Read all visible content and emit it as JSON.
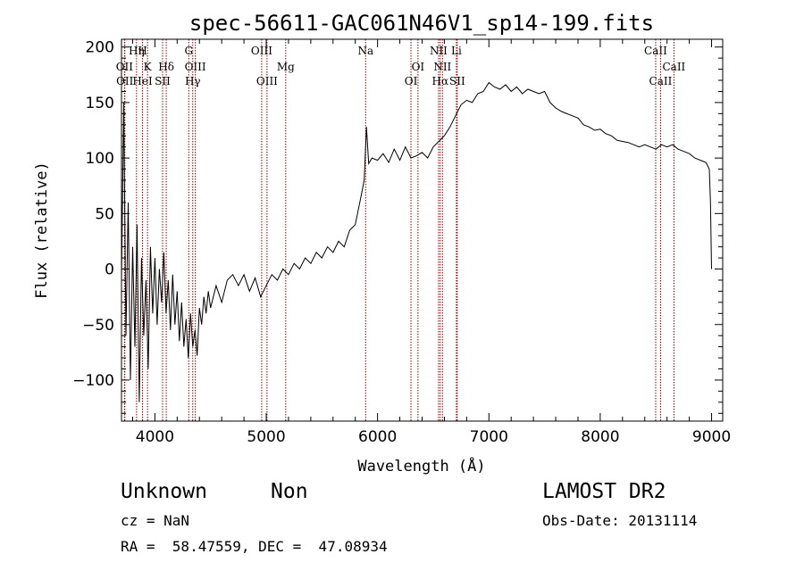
{
  "chart_data": {
    "type": "line",
    "title": "spec-56611-GAC061N46V1_sp14-199.fits",
    "xlabel": "Wavelength (Å)",
    "ylabel": "Flux (relative)",
    "xlim": [
      3700,
      9100
    ],
    "ylim": [
      -137,
      207
    ],
    "xticks": [
      4000,
      5000,
      6000,
      7000,
      8000,
      9000
    ],
    "yticks": [
      -100,
      -50,
      0,
      50,
      100,
      150,
      200
    ],
    "series": [
      {
        "points": [
          [
            3700,
            -10
          ],
          [
            3720,
            150
          ],
          [
            3740,
            -60
          ],
          [
            3760,
            60
          ],
          [
            3780,
            -100
          ],
          [
            3800,
            20
          ],
          [
            3820,
            -70
          ],
          [
            3840,
            40
          ],
          [
            3860,
            -120
          ],
          [
            3880,
            10
          ],
          [
            3900,
            -60
          ],
          [
            3920,
            -10
          ],
          [
            3940,
            -90
          ],
          [
            3960,
            20
          ],
          [
            3980,
            -40
          ],
          [
            4000,
            10
          ],
          [
            4020,
            -50
          ],
          [
            4040,
            0
          ],
          [
            4060,
            -30
          ],
          [
            4080,
            15
          ],
          [
            4100,
            -40
          ],
          [
            4120,
            -10
          ],
          [
            4140,
            -55
          ],
          [
            4160,
            -5
          ],
          [
            4180,
            -50
          ],
          [
            4200,
            -20
          ],
          [
            4220,
            -65
          ],
          [
            4240,
            -30
          ],
          [
            4260,
            -70
          ],
          [
            4280,
            -45
          ],
          [
            4300,
            -80
          ],
          [
            4320,
            -40
          ],
          [
            4340,
            -70
          ],
          [
            4360,
            -55
          ],
          [
            4380,
            -78
          ],
          [
            4400,
            -35
          ],
          [
            4420,
            -50
          ],
          [
            4440,
            -25
          ],
          [
            4460,
            -40
          ],
          [
            4480,
            -20
          ],
          [
            4500,
            -35
          ],
          [
            4550,
            -15
          ],
          [
            4600,
            -30
          ],
          [
            4650,
            -10
          ],
          [
            4700,
            -5
          ],
          [
            4750,
            -15
          ],
          [
            4800,
            -5
          ],
          [
            4850,
            -20
          ],
          [
            4900,
            -8
          ],
          [
            4950,
            -25
          ],
          [
            5000,
            -15
          ],
          [
            5050,
            -5
          ],
          [
            5100,
            -10
          ],
          [
            5150,
            0
          ],
          [
            5200,
            -5
          ],
          [
            5250,
            5
          ],
          [
            5300,
            0
          ],
          [
            5350,
            10
          ],
          [
            5400,
            5
          ],
          [
            5450,
            15
          ],
          [
            5500,
            10
          ],
          [
            5550,
            20
          ],
          [
            5600,
            15
          ],
          [
            5650,
            25
          ],
          [
            5700,
            20
          ],
          [
            5750,
            35
          ],
          [
            5800,
            40
          ],
          [
            5850,
            65
          ],
          [
            5880,
            80
          ],
          [
            5900,
            128
          ],
          [
            5920,
            95
          ],
          [
            5950,
            100
          ],
          [
            6000,
            98
          ],
          [
            6050,
            104
          ],
          [
            6100,
            96
          ],
          [
            6150,
            108
          ],
          [
            6200,
            98
          ],
          [
            6250,
            110
          ],
          [
            6300,
            100
          ],
          [
            6350,
            102
          ],
          [
            6400,
            105
          ],
          [
            6450,
            100
          ],
          [
            6500,
            110
          ],
          [
            6550,
            115
          ],
          [
            6600,
            120
          ],
          [
            6650,
            128
          ],
          [
            6700,
            138
          ],
          [
            6750,
            148
          ],
          [
            6800,
            152
          ],
          [
            6850,
            150
          ],
          [
            6900,
            158
          ],
          [
            6950,
            160
          ],
          [
            7000,
            168
          ],
          [
            7050,
            164
          ],
          [
            7100,
            162
          ],
          [
            7150,
            166
          ],
          [
            7200,
            160
          ],
          [
            7250,
            164
          ],
          [
            7300,
            158
          ],
          [
            7350,
            162
          ],
          [
            7400,
            160
          ],
          [
            7450,
            158
          ],
          [
            7500,
            160
          ],
          [
            7550,
            150
          ],
          [
            7600,
            145
          ],
          [
            7650,
            142
          ],
          [
            7700,
            140
          ],
          [
            7750,
            138
          ],
          [
            7800,
            136
          ],
          [
            7850,
            130
          ],
          [
            7900,
            128
          ],
          [
            7950,
            125
          ],
          [
            8000,
            126
          ],
          [
            8050,
            122
          ],
          [
            8100,
            120
          ],
          [
            8150,
            116
          ],
          [
            8200,
            115
          ],
          [
            8250,
            114
          ],
          [
            8300,
            112
          ],
          [
            8350,
            110
          ],
          [
            8400,
            112
          ],
          [
            8450,
            110
          ],
          [
            8500,
            108
          ],
          [
            8550,
            112
          ],
          [
            8600,
            110
          ],
          [
            8650,
            112
          ],
          [
            8700,
            108
          ],
          [
            8750,
            106
          ],
          [
            8800,
            104
          ],
          [
            8850,
            100
          ],
          [
            8900,
            98
          ],
          [
            8950,
            96
          ],
          [
            8980,
            90
          ],
          [
            8990,
            60
          ],
          [
            9000,
            0
          ]
        ]
      }
    ],
    "line_markers": [
      {
        "label": "Hη",
        "wavelength": 3835,
        "row": 1
      },
      {
        "label": "H",
        "wavelength": 3889,
        "row": 1
      },
      {
        "label": "G",
        "wavelength": 4304,
        "row": 1
      },
      {
        "label": "OIII",
        "wavelength": 4959,
        "row": 1
      },
      {
        "label": "Na",
        "wavelength": 5893,
        "row": 1
      },
      {
        "label": "NII",
        "wavelength": 6548,
        "row": 1
      },
      {
        "label": "Li",
        "wavelength": 6708,
        "row": 1
      },
      {
        "label": "CaII",
        "wavelength": 8498,
        "row": 1
      },
      {
        "label": "OII",
        "wavelength": 3727,
        "row": 2
      },
      {
        "label": "K",
        "wavelength": 3934,
        "row": 2
      },
      {
        "label": "Hδ",
        "wavelength": 4102,
        "row": 2
      },
      {
        "label": "OIII",
        "wavelength": 4363,
        "row": 2
      },
      {
        "label": "Mg",
        "wavelength": 5175,
        "row": 2
      },
      {
        "label": "OI",
        "wavelength": 6363,
        "row": 2
      },
      {
        "label": "NII",
        "wavelength": 6583,
        "row": 2
      },
      {
        "label": "CaII",
        "wavelength": 8662,
        "row": 2
      },
      {
        "label": "OII",
        "wavelength": 3730,
        "row": 3
      },
      {
        "label": "HeI",
        "wavelength": 3889,
        "row": 3
      },
      {
        "label": "SII",
        "wavelength": 4069,
        "row": 3
      },
      {
        "label": "Hγ",
        "wavelength": 4340,
        "row": 3
      },
      {
        "label": "OIII",
        "wavelength": 5007,
        "row": 3
      },
      {
        "label": "OI",
        "wavelength": 6300,
        "row": 3
      },
      {
        "label": "Hα",
        "wavelength": 6563,
        "row": 3
      },
      {
        "label": "SII",
        "wavelength": 6716,
        "row": 3
      },
      {
        "label": "CaII",
        "wavelength": 8542,
        "row": 3
      }
    ],
    "colors": {
      "line": "#000000",
      "markers": "#8b0000",
      "axes": "#000000"
    }
  },
  "info": {
    "class": "Unknown",
    "subclass": "Non",
    "survey": "LAMOST DR2",
    "cz": "cz = NaN",
    "obs_date": "Obs-Date: 20131114",
    "radec": "RA =  58.47559, DEC =  47.08934"
  }
}
